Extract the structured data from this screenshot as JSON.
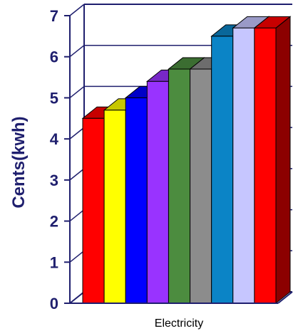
{
  "chart_data": {
    "type": "bar",
    "title": "",
    "xlabel": "",
    "ylabel": "Cents(kwh)",
    "categories": [
      "Electricity"
    ],
    "ylim": [
      0,
      7
    ],
    "yticks": [
      "0",
      "1",
      "2",
      "3",
      "4",
      "5",
      "6",
      "7"
    ],
    "grid": true,
    "legend": "none",
    "series": [
      {
        "values": [
          4.5
        ],
        "color": "#ff0000"
      },
      {
        "values": [
          4.7
        ],
        "color": "#ffff00"
      },
      {
        "values": [
          5.0
        ],
        "color": "#0000ff"
      },
      {
        "values": [
          5.4
        ],
        "color": "#9933ff"
      },
      {
        "values": [
          5.7
        ],
        "color": "#4c8c3f"
      },
      {
        "values": [
          5.7
        ],
        "color": "#8c8c8c"
      },
      {
        "values": [
          6.5
        ],
        "color": "#0b84c6"
      },
      {
        "values": [
          6.7
        ],
        "color": "#c6c6ff"
      },
      {
        "values": [
          6.7
        ],
        "color": "#ff0000"
      }
    ]
  }
}
